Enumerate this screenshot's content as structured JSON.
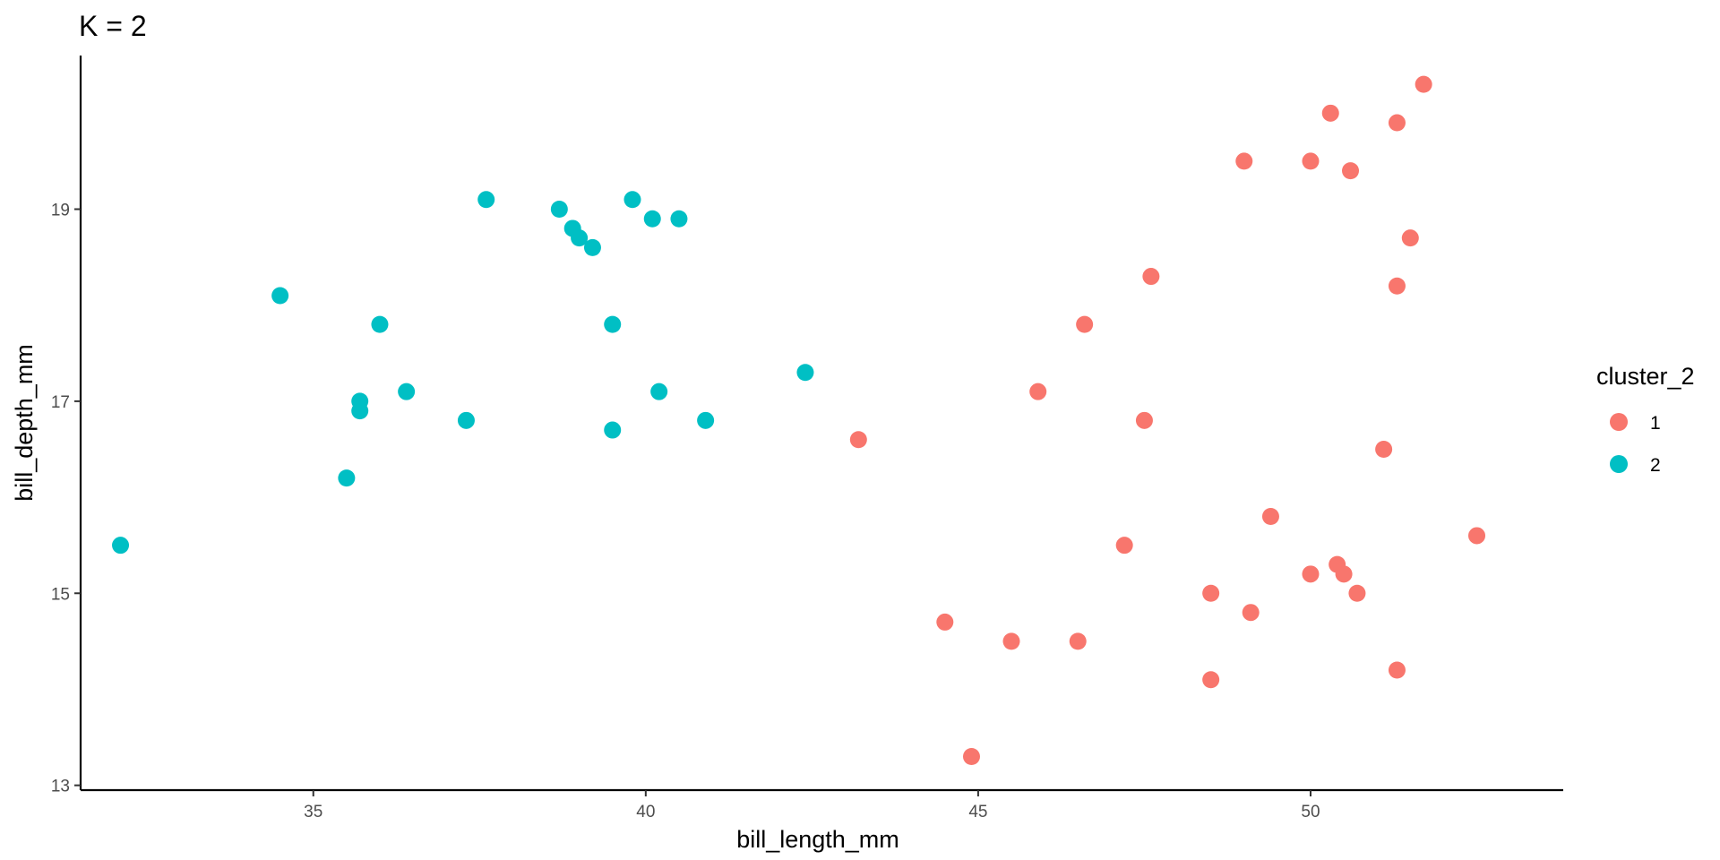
{
  "chart_data": {
    "type": "scatter",
    "title": "K = 2",
    "xlabel": "bill_length_mm",
    "ylabel": "bill_depth_mm",
    "xlim": [
      31.5,
      53.8
    ],
    "ylim": [
      12.95,
      20.6
    ],
    "x_ticks": [
      35,
      40,
      45,
      50
    ],
    "y_ticks": [
      13,
      15,
      17,
      19
    ],
    "grid": false,
    "legend": {
      "title": "cluster_2",
      "position": "right"
    },
    "series": [
      {
        "name": "1",
        "color": "#F8766D",
        "points": [
          [
            51.7,
            20.3
          ],
          [
            50.3,
            20.0
          ],
          [
            51.3,
            19.9
          ],
          [
            49.0,
            19.5
          ],
          [
            50.0,
            19.5
          ],
          [
            50.6,
            19.4
          ],
          [
            51.5,
            18.7
          ],
          [
            47.6,
            18.3
          ],
          [
            51.3,
            18.2
          ],
          [
            46.6,
            17.8
          ],
          [
            45.9,
            17.1
          ],
          [
            47.5,
            16.8
          ],
          [
            43.2,
            16.6
          ],
          [
            51.1,
            16.5
          ],
          [
            49.4,
            15.8
          ],
          [
            52.5,
            15.6
          ],
          [
            47.2,
            15.5
          ],
          [
            50.4,
            15.3
          ],
          [
            50.0,
            15.2
          ],
          [
            50.5,
            15.2
          ],
          [
            48.5,
            15.0
          ],
          [
            50.7,
            15.0
          ],
          [
            49.1,
            14.8
          ],
          [
            44.5,
            14.7
          ],
          [
            45.5,
            14.5
          ],
          [
            46.5,
            14.5
          ],
          [
            51.3,
            14.2
          ],
          [
            48.5,
            14.1
          ],
          [
            44.9,
            13.3
          ]
        ]
      },
      {
        "name": "2",
        "color": "#00BFC4",
        "points": [
          [
            37.6,
            19.1
          ],
          [
            39.8,
            19.1
          ],
          [
            38.7,
            19.0
          ],
          [
            40.1,
            18.9
          ],
          [
            40.5,
            18.9
          ],
          [
            38.9,
            18.8
          ],
          [
            39.0,
            18.7
          ],
          [
            39.2,
            18.6
          ],
          [
            34.5,
            18.1
          ],
          [
            36.0,
            17.8
          ],
          [
            39.5,
            17.8
          ],
          [
            42.4,
            17.3
          ],
          [
            36.4,
            17.1
          ],
          [
            40.2,
            17.1
          ],
          [
            35.7,
            17.0
          ],
          [
            35.7,
            16.9
          ],
          [
            37.3,
            16.8
          ],
          [
            40.9,
            16.8
          ],
          [
            39.5,
            16.7
          ],
          [
            35.5,
            16.2
          ],
          [
            32.1,
            15.5
          ]
        ]
      }
    ]
  }
}
